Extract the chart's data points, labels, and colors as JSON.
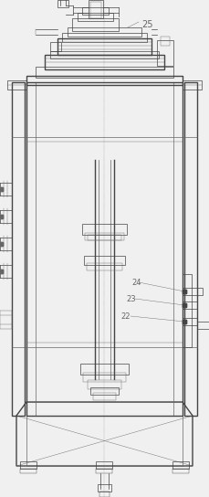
{
  "bg_color": "#f0f0f0",
  "lc": "#444444",
  "lc2": "#666666",
  "lw1": 1.0,
  "lw2": 0.5,
  "lw3": 0.3,
  "fig_width": 2.29,
  "fig_height": 5.44,
  "dpi": 100
}
